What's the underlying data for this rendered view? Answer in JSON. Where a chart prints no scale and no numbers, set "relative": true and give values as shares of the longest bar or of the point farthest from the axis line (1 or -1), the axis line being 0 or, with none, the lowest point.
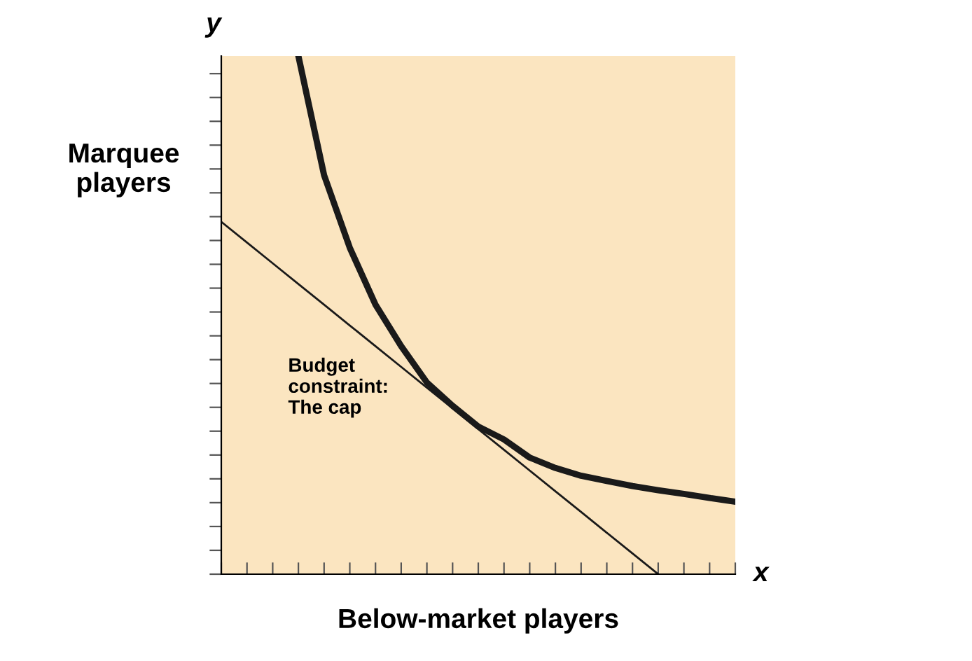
{
  "chart_data": {
    "type": "line",
    "relative": true,
    "xlabel": "Below-market players",
    "ylabel": "Marquee\nplayers",
    "annotations": [
      "y",
      "x",
      "Budget\nconstraint:\nThe cap"
    ],
    "categories": [
      null,
      null,
      null,
      null,
      null,
      null,
      null,
      null,
      null,
      null,
      null,
      null,
      null,
      null,
      null,
      null,
      null,
      null,
      null,
      null,
      null
    ],
    "series": [
      {
        "color": "#1a1a1a",
        "values": [
          null,
          null,
          null,
          1.0,
          0.77,
          0.63,
          0.52,
          0.44,
          0.37,
          0.325,
          0.285,
          0.26,
          0.225,
          0.205,
          0.19,
          0.18,
          0.17,
          0.162,
          0.155,
          0.147,
          0.14
        ]
      },
      {
        "color": "#1a1a1a",
        "values": [
          0.68,
          0.64,
          0.6,
          0.56,
          0.52,
          0.48,
          0.44,
          0.4,
          0.36,
          0.32,
          0.28,
          0.24,
          0.2,
          0.16,
          0.12,
          0.08,
          0.04,
          0.0,
          null,
          null,
          null
        ]
      }
    ],
    "grid": false,
    "legend": false,
    "marker": "none",
    "line_style": "solid"
  }
}
